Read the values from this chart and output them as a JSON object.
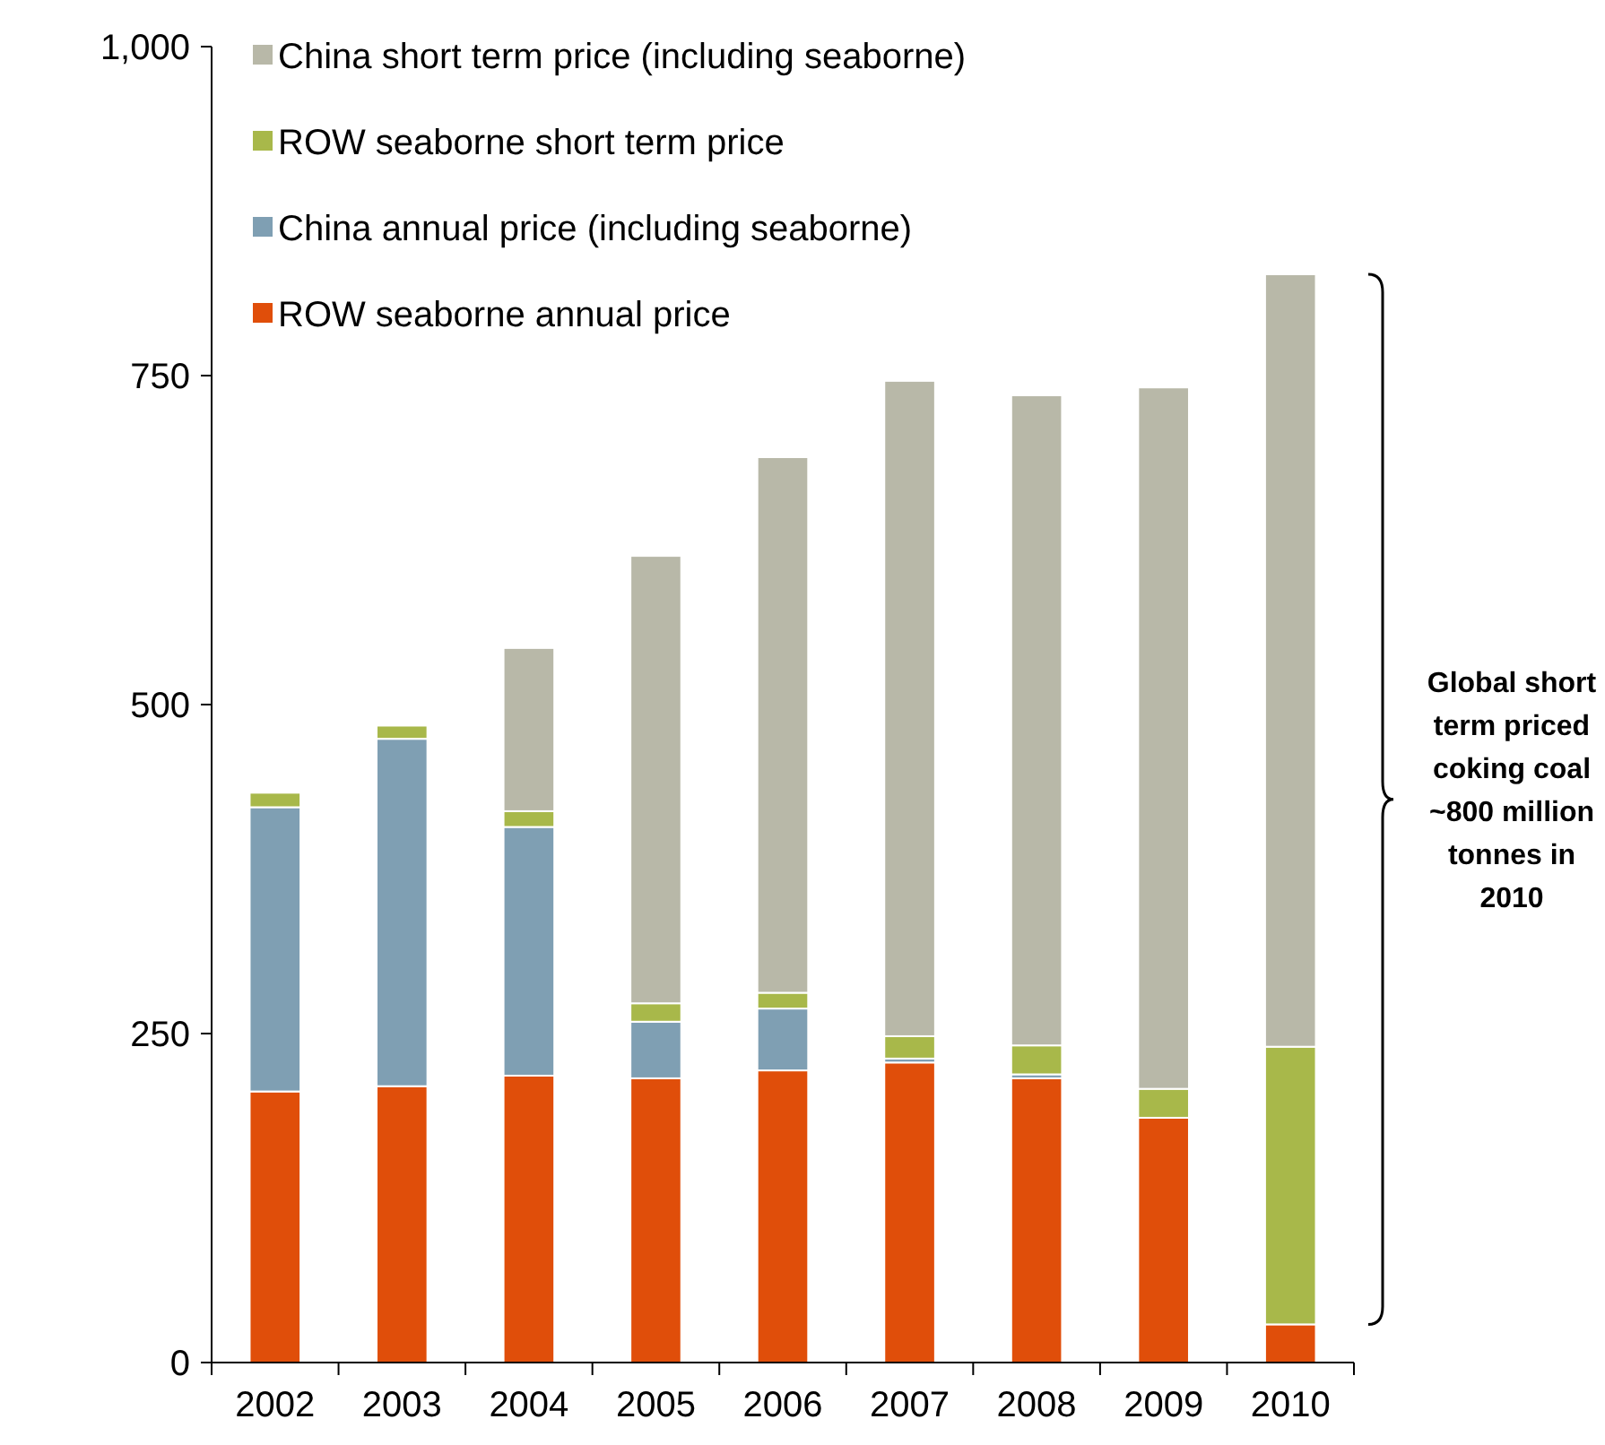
{
  "chart_data": {
    "type": "bar",
    "stacked": true,
    "categories": [
      "2002",
      "2003",
      "2004",
      "2005",
      "2006",
      "2007",
      "2008",
      "2009",
      "2010"
    ],
    "series": [
      {
        "name": "ROW seaborne annual price",
        "color": "#e04e0a",
        "values": [
          206,
          210,
          218,
          216,
          222,
          228,
          216,
          186,
          29
        ]
      },
      {
        "name": "China annual price (including seaborne)",
        "color": "#7f9fb3",
        "values": [
          216,
          264,
          189,
          43,
          47,
          3,
          3,
          0,
          0
        ]
      },
      {
        "name": "ROW seaborne short term price",
        "color": "#a8b84a",
        "values": [
          11,
          10,
          12,
          14,
          12,
          17,
          22,
          22,
          211
        ]
      },
      {
        "name": "China short term price (including seaborne)",
        "color": "#b8b8a8",
        "values": [
          0,
          0,
          124,
          340,
          407,
          498,
          494,
          533,
          587
        ]
      }
    ],
    "ylim": [
      0,
      1000
    ],
    "yticks": [
      0,
      {
        "value": 250,
        "label": "250"
      },
      {
        "value": 500,
        "label": "500"
      },
      {
        "value": 750,
        "label": "750"
      },
      {
        "value": 1000,
        "label": "1,000"
      }
    ],
    "grid": false,
    "legend": "top left",
    "annotations": [
      "Global short term priced coking coal ~800 million tonnes in 2010"
    ]
  }
}
